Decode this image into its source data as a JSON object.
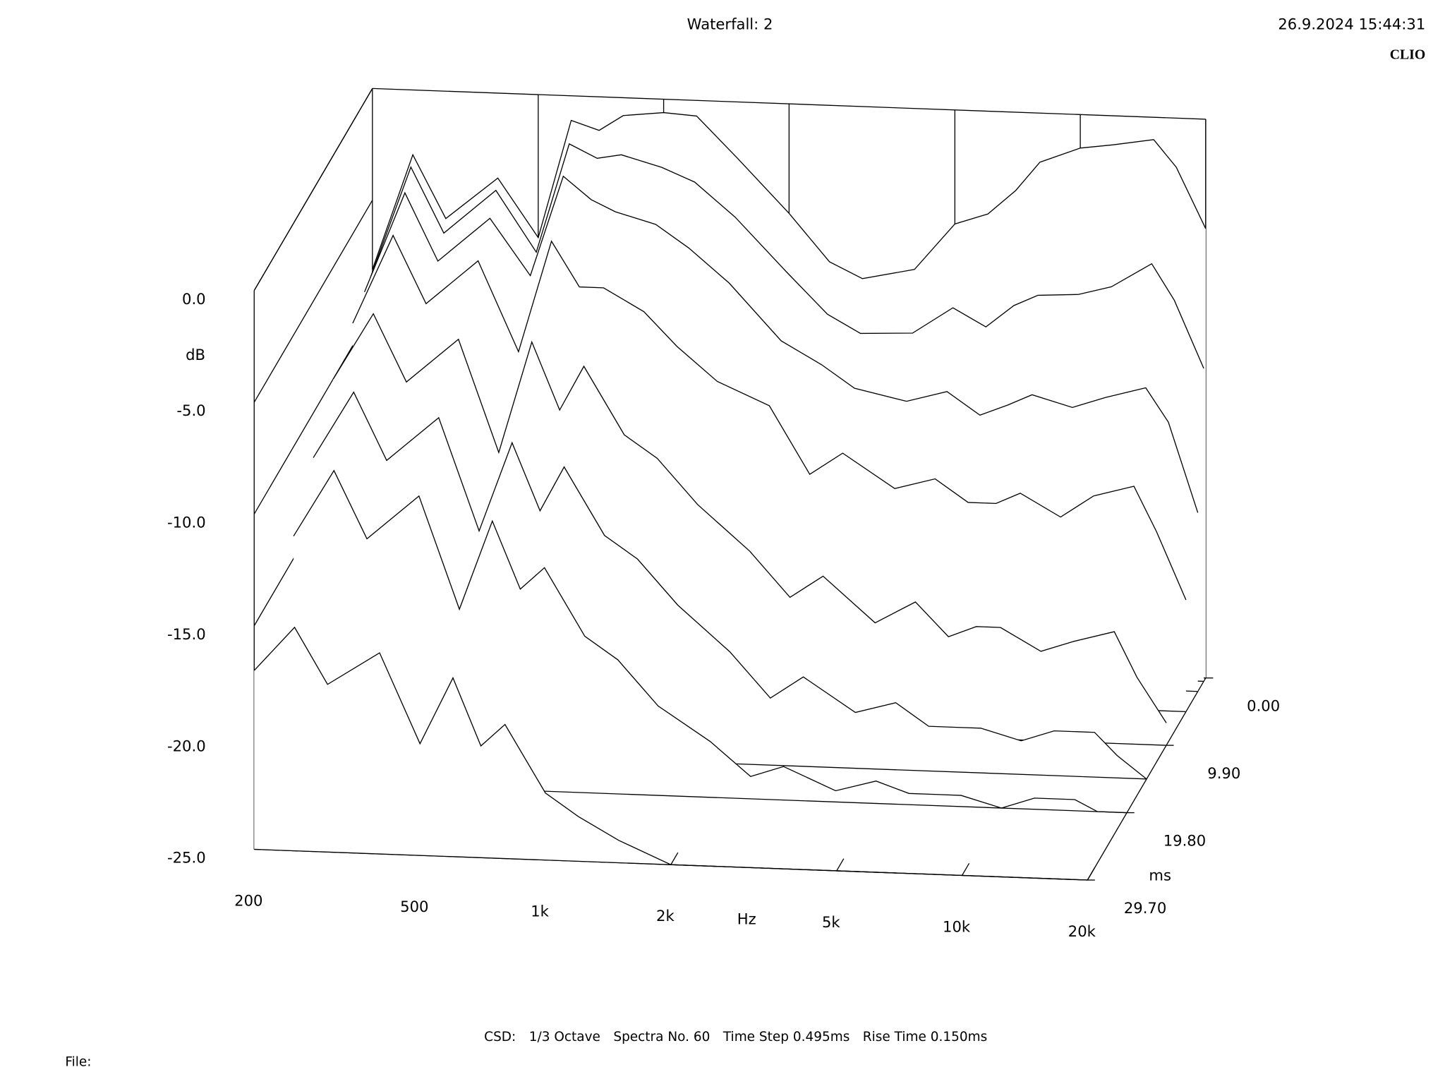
{
  "chart_data": {
    "type": "waterfall",
    "title": "Waterfall: 2",
    "timestamp": "26.9.2024 15:44:31",
    "brand": "CLIO",
    "y_label": "dB",
    "x_label": "Hz",
    "z_label": "ms",
    "footer": [
      "CSD:",
      "1/3 Octave",
      "Spectra No. 60",
      "Time Step 0.495ms",
      "Rise Time 0.150ms"
    ],
    "file_label": "File:",
    "log_x": true,
    "color": "#000000",
    "xlim": [
      200,
      20000
    ],
    "xticks": [
      200,
      500,
      {
        "value": 1000,
        "label": "1k"
      },
      {
        "value": 2000,
        "label": "2k"
      },
      {
        "value": 5000,
        "label": "5k"
      },
      {
        "value": 10000,
        "label": "10k"
      },
      {
        "value": 20000,
        "label": "20k"
      }
    ],
    "ylim": [
      -25,
      0
    ],
    "yticks": [
      {
        "value": 0,
        "label": "0.0"
      },
      {
        "value": -5,
        "label": "-5.0"
      },
      {
        "value": -10,
        "label": "-10.0"
      },
      {
        "value": -15,
        "label": "-15.0"
      },
      {
        "value": -20,
        "label": "-20.0"
      },
      {
        "value": -25,
        "label": "-25.0"
      }
    ],
    "zlim": [
      0,
      29.7
    ],
    "zticks": [
      {
        "value": 0,
        "label": "0.00"
      },
      {
        "value": 9.9,
        "label": "9.90"
      },
      {
        "value": 19.8,
        "label": "19.80"
      },
      {
        "value": 29.7,
        "label": "29.70"
      }
    ],
    "frequencies": [
      200,
      250,
      300,
      400,
      500,
      600,
      700,
      800,
      1000,
      1200,
      1500,
      2000,
      2500,
      3000,
      4000,
      5000,
      6000,
      7000,
      8000,
      10000,
      12000,
      15000,
      17000,
      20000
    ],
    "slices": [
      {
        "time": 0,
        "values": [
          -8.1,
          -2.9,
          -5.7,
          -3.8,
          -6.4,
          -1.1,
          -1.5,
          -0.8,
          -0.6,
          -0.7,
          -2.5,
          -4.9,
          -7.0,
          -7.7,
          -7.2,
          -5.1,
          -4.6,
          -3.5,
          -2.2,
          -1.5,
          -1.3,
          -1.0,
          -2.2,
          -4.9
        ]
      },
      {
        "time": 0.495,
        "values": [
          -8.3,
          -3.3,
          -6.2,
          -4.2,
          -6.9,
          -2.0,
          -2.6,
          -2.4,
          -2.9,
          -3.5,
          -5.0,
          -7.4,
          -9.2,
          -10.0,
          -9.9,
          -8.7,
          -9.5,
          -8.5,
          -8.0,
          -7.9,
          -7.5,
          -6.4,
          -8.0,
          -11.0
        ]
      },
      {
        "time": 1.98,
        "values": [
          -8.5,
          -4,
          -7,
          -5,
          -7.5,
          -3,
          -4,
          -4.5,
          -5,
          -6,
          -7.5,
          -10,
          -11,
          -12,
          -12.5,
          -12,
          -13,
          -12.5,
          -12,
          -12.5,
          -12,
          -11.5,
          -13,
          -17
        ]
      },
      {
        "time": 4.95,
        "values": [
          -9,
          -5,
          -8,
          -6,
          -10,
          -5,
          -7,
          -7,
          -8,
          -9.5,
          -11,
          -12,
          -15,
          -14,
          -15.5,
          -15,
          -16,
          -16,
          -15.5,
          -16.5,
          -15.5,
          -15,
          -17,
          -20
        ]
      },
      {
        "time": 9.9,
        "values": [
          -10,
          -7,
          -10,
          -8,
          -13,
          -8,
          -11,
          -9,
          -12,
          -13,
          -15,
          -17,
          -19,
          -18,
          -20,
          -19,
          -20.5,
          -20,
          -20,
          -21,
          -20.5,
          -20,
          -22,
          -24
        ]
      },
      {
        "time": 14.85,
        "values": [
          -12,
          -9,
          -12,
          -10,
          -15,
          -11,
          -14,
          -12,
          -15,
          -16,
          -18,
          -20,
          -22,
          -21,
          -22.5,
          -22,
          -23,
          -23,
          -23,
          -23.5,
          -23,
          -23,
          -24,
          -25
        ]
      },
      {
        "time": 19.8,
        "values": [
          -14,
          -11,
          -14,
          -12,
          -17,
          -13,
          -16,
          -15,
          -18,
          -19,
          -21,
          -22.5,
          -24,
          -23.5,
          -24.5,
          -24,
          -24.5,
          -24.5,
          -24.5,
          -25,
          -24.5,
          -24.5,
          -25,
          -25
        ]
      },
      {
        "time": 29.7,
        "values": [
          -17,
          -15,
          -17.5,
          -16,
          -20,
          -17,
          -20,
          -19,
          -22,
          -23,
          -24,
          -25,
          -25,
          -25,
          -25,
          -25,
          -25,
          -25,
          -25,
          -25,
          -25,
          -25,
          -25,
          -25
        ]
      }
    ]
  }
}
